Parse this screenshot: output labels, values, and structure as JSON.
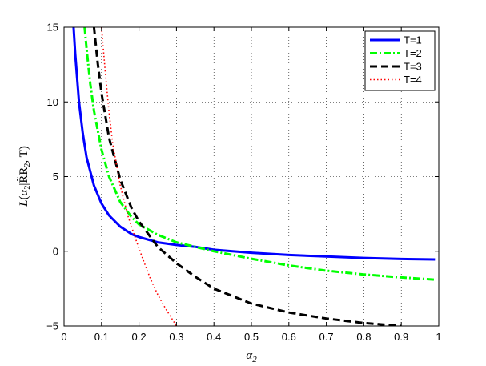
{
  "chart_data": {
    "type": "line",
    "xlabel": "α₂",
    "ylabel": "L(α₂|R̃R₂, T)",
    "xlim": [
      0,
      1
    ],
    "ylim": [
      -5,
      15
    ],
    "xticks": [
      "0",
      "0.1",
      "0.2",
      "0.3",
      "0.4",
      "0.5",
      "0.6",
      "0.7",
      "0.8",
      "0.9",
      "1"
    ],
    "yticks": [
      "−5",
      "0",
      "5",
      "10",
      "15"
    ],
    "grid": true,
    "legend_position": "top-right",
    "series": [
      {
        "name": "T=1",
        "color": "#0000ff",
        "style": "solid",
        "x": [
          0.025,
          0.03,
          0.04,
          0.05,
          0.06,
          0.08,
          0.1,
          0.12,
          0.15,
          0.18,
          0.2,
          0.25,
          0.3,
          0.35,
          0.4,
          0.5,
          0.6,
          0.7,
          0.8,
          0.9,
          0.99
        ],
        "y": [
          15.2,
          13.2,
          10.0,
          7.9,
          6.3,
          4.4,
          3.2,
          2.4,
          1.65,
          1.15,
          0.95,
          0.6,
          0.42,
          0.3,
          0.1,
          -0.1,
          -0.25,
          -0.35,
          -0.45,
          -0.52,
          -0.55
        ]
      },
      {
        "name": "T=2",
        "color": "#00ff00",
        "style": "dash-dot",
        "x": [
          0.055,
          0.06,
          0.07,
          0.08,
          0.1,
          0.12,
          0.15,
          0.18,
          0.2,
          0.25,
          0.3,
          0.4,
          0.5,
          0.6,
          0.7,
          0.8,
          0.9,
          0.99
        ],
        "y": [
          15.0,
          13.6,
          11.2,
          9.4,
          6.8,
          5.0,
          3.3,
          2.3,
          1.8,
          1.1,
          0.6,
          0.0,
          -0.5,
          -0.95,
          -1.3,
          -1.55,
          -1.75,
          -1.9
        ]
      },
      {
        "name": "T=3",
        "color": "#000000",
        "style": "dashed",
        "x": [
          0.08,
          0.09,
          0.1,
          0.12,
          0.15,
          0.18,
          0.2,
          0.25,
          0.3,
          0.35,
          0.4,
          0.5,
          0.6,
          0.7,
          0.8,
          0.9
        ],
        "y": [
          15.0,
          12.6,
          10.6,
          7.6,
          4.8,
          2.9,
          2.0,
          0.3,
          -0.8,
          -1.7,
          -2.5,
          -3.5,
          -4.1,
          -4.5,
          -4.8,
          -5.0
        ]
      },
      {
        "name": "T=4",
        "color": "#ff0000",
        "style": "dotted",
        "x": [
          0.1,
          0.11,
          0.12,
          0.13,
          0.15,
          0.17,
          0.19,
          0.21,
          0.23,
          0.25,
          0.27,
          0.29,
          0.3
        ],
        "y": [
          15.0,
          12.0,
          9.3,
          7.2,
          4.4,
          2.4,
          0.9,
          -0.5,
          -1.8,
          -2.9,
          -3.8,
          -4.6,
          -5.0
        ]
      }
    ]
  }
}
